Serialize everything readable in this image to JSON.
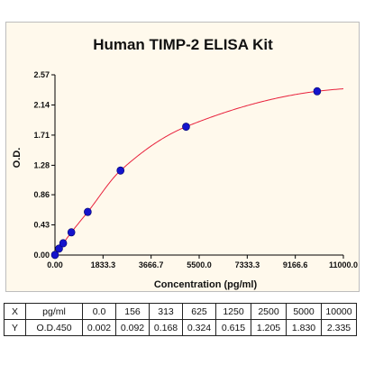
{
  "chart_data": {
    "type": "scatter",
    "title": "Human TIMP-2 ELISA Kit",
    "xlabel": "Concentration (pg/ml)",
    "ylabel": "O.D.",
    "xlim": [
      0,
      11000
    ],
    "ylim": [
      0,
      2.57
    ],
    "x_ticks": [
      0,
      1833.3,
      3666.7,
      5500,
      7333.3,
      9166.6,
      11000
    ],
    "x_tick_labels": [
      "0.00",
      "1833.3",
      "3666.7",
      "5500.0",
      "7333.3",
      "9166.6",
      "11000.0"
    ],
    "y_ticks": [
      0,
      0.43,
      0.86,
      1.28,
      1.71,
      2.14,
      2.57
    ],
    "y_tick_labels": [
      "0.00",
      "0.43",
      "0.86",
      "1.28",
      "1.71",
      "2.14",
      "2.57"
    ],
    "series": [
      {
        "type": "scatter",
        "x": [
          0,
          156,
          313,
          625,
          1250,
          2500,
          5000,
          10000
        ],
        "y": [
          0.002,
          0.092,
          0.168,
          0.324,
          0.615,
          1.205,
          1.83,
          2.335
        ],
        "color": "#1414CC"
      },
      {
        "type": "line",
        "fit": "4PL",
        "color": "#E8213C"
      }
    ],
    "grid": false,
    "legend": "none"
  },
  "table": {
    "rows": [
      [
        "X",
        "pg/ml",
        "0.0",
        "156",
        "313",
        "625",
        "1250",
        "2500",
        "5000",
        "10000"
      ],
      [
        "Y",
        "O.D.450",
        "0.002",
        "0.092",
        "0.168",
        "0.324",
        "0.615",
        "1.205",
        "1.830",
        "2.335"
      ]
    ]
  }
}
